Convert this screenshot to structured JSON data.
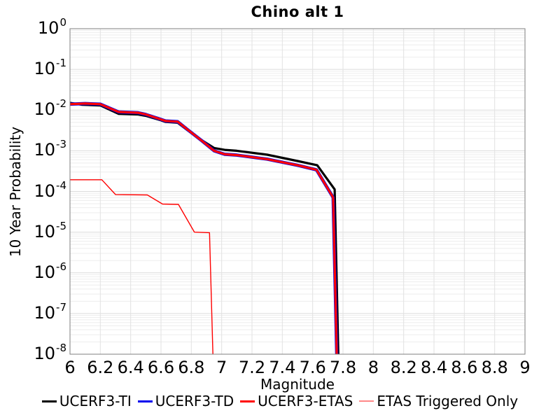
{
  "chart_data": {
    "type": "line",
    "title": "Chino alt 1",
    "xlabel": "Magnitude",
    "ylabel": "10 Year Probability",
    "x_axis": {
      "min": 6,
      "max": 9,
      "tick_step": 0.2,
      "ticks": [
        {
          "label": "6",
          "value": 6.0
        },
        {
          "label": "6.2",
          "value": 6.2
        },
        {
          "label": "6.4",
          "value": 6.4
        },
        {
          "label": "6.6",
          "value": 6.6
        },
        {
          "label": "6.8",
          "value": 6.8
        },
        {
          "label": "7",
          "value": 7.0
        },
        {
          "label": "7.2",
          "value": 7.2
        },
        {
          "label": "7.4",
          "value": 7.4
        },
        {
          "label": "7.6",
          "value": 7.6
        },
        {
          "label": "7.8",
          "value": 7.8
        },
        {
          "label": "8",
          "value": 8.0
        },
        {
          "label": "8.2",
          "value": 8.2
        },
        {
          "label": "8.4",
          "value": 8.4
        },
        {
          "label": "8.6",
          "value": 8.6
        },
        {
          "label": "8.8",
          "value": 8.8
        },
        {
          "label": "9",
          "value": 9.0
        }
      ]
    },
    "y_axis": {
      "scale": "log",
      "min": 1e-08,
      "max": 1,
      "tick_exponents": [
        0,
        -1,
        -2,
        -3,
        -4,
        -5,
        -6,
        -7,
        -8
      ]
    },
    "grid": true,
    "legend_position": "bottom",
    "colors": {
      "grid_minor": "#ededed",
      "grid_major": "#dcdcdc",
      "grid_vertical": "#e2e2e2",
      "plot_border": "#7f7f7f"
    },
    "series": [
      {
        "name": "UCERF3-TI",
        "color": "#000000",
        "legend_color": "#000000",
        "line_width": 3.2,
        "legend_swatch_height": 3,
        "points": [
          [
            6.0,
            0.015
          ],
          [
            6.08,
            0.0135
          ],
          [
            6.2,
            0.013
          ],
          [
            6.32,
            0.0081
          ],
          [
            6.45,
            0.0078
          ],
          [
            6.5,
            0.0072
          ],
          [
            6.6,
            0.0056
          ],
          [
            6.63,
            0.0051
          ],
          [
            6.71,
            0.0049
          ],
          [
            6.78,
            0.0031
          ],
          [
            6.87,
            0.0018
          ],
          [
            6.95,
            0.00117
          ],
          [
            7.02,
            0.00105
          ],
          [
            7.1,
            0.001
          ],
          [
            7.3,
            0.0008
          ],
          [
            7.5,
            0.00056
          ],
          [
            7.63,
            0.00044
          ],
          [
            7.745,
            0.000112
          ],
          [
            7.775,
            1e-09
          ]
        ]
      },
      {
        "name": "UCERF3-TD",
        "color": "#0000ee",
        "legend_color": "#0000ee",
        "line_width": 4.6,
        "legend_swatch_height": 3,
        "points": [
          [
            6.0,
            0.014
          ],
          [
            6.1,
            0.0145
          ],
          [
            6.2,
            0.014
          ],
          [
            6.32,
            0.009
          ],
          [
            6.45,
            0.0086
          ],
          [
            6.5,
            0.0078
          ],
          [
            6.6,
            0.0059
          ],
          [
            6.63,
            0.0054
          ],
          [
            6.71,
            0.0052
          ],
          [
            6.78,
            0.0032
          ],
          [
            6.87,
            0.00175
          ],
          [
            6.95,
            0.001
          ],
          [
            7.02,
            0.00082
          ],
          [
            7.1,
            0.00078
          ],
          [
            7.3,
            0.00062
          ],
          [
            7.5,
            0.00044
          ],
          [
            7.625,
            0.00034
          ],
          [
            7.735,
            7.1e-05
          ],
          [
            7.765,
            1e-09
          ]
        ]
      },
      {
        "name": "UCERF3-ETAS",
        "color": "#ff0000",
        "legend_color": "#ff0000",
        "line_width": 3.2,
        "legend_swatch_height": 3,
        "points": [
          [
            6.0,
            0.014
          ],
          [
            6.1,
            0.0145
          ],
          [
            6.2,
            0.014
          ],
          [
            6.32,
            0.009
          ],
          [
            6.45,
            0.0086
          ],
          [
            6.5,
            0.0078
          ],
          [
            6.6,
            0.0059
          ],
          [
            6.63,
            0.0054
          ],
          [
            6.71,
            0.0052
          ],
          [
            6.78,
            0.0032
          ],
          [
            6.87,
            0.00175
          ],
          [
            6.95,
            0.001
          ],
          [
            7.02,
            0.00082
          ],
          [
            7.1,
            0.00078
          ],
          [
            7.3,
            0.00062
          ],
          [
            7.5,
            0.00044
          ],
          [
            7.625,
            0.00034
          ],
          [
            7.735,
            7.1e-05
          ],
          [
            7.765,
            1e-09
          ]
        ]
      },
      {
        "name": "ETAS Triggered Only",
        "color": "#ff0000",
        "legend_color": "#ff8888",
        "line_width": 1.4,
        "legend_swatch_height": 2,
        "points": [
          [
            6.0,
            0.000194
          ],
          [
            6.21,
            0.000194
          ],
          [
            6.3,
            8.4e-05
          ],
          [
            6.51,
            8.2e-05
          ],
          [
            6.61,
            4.9e-05
          ],
          [
            6.715,
            4.8e-05
          ],
          [
            6.82,
            1e-05
          ],
          [
            6.92,
            9.7e-06
          ],
          [
            6.95,
            1e-09
          ]
        ]
      }
    ]
  }
}
